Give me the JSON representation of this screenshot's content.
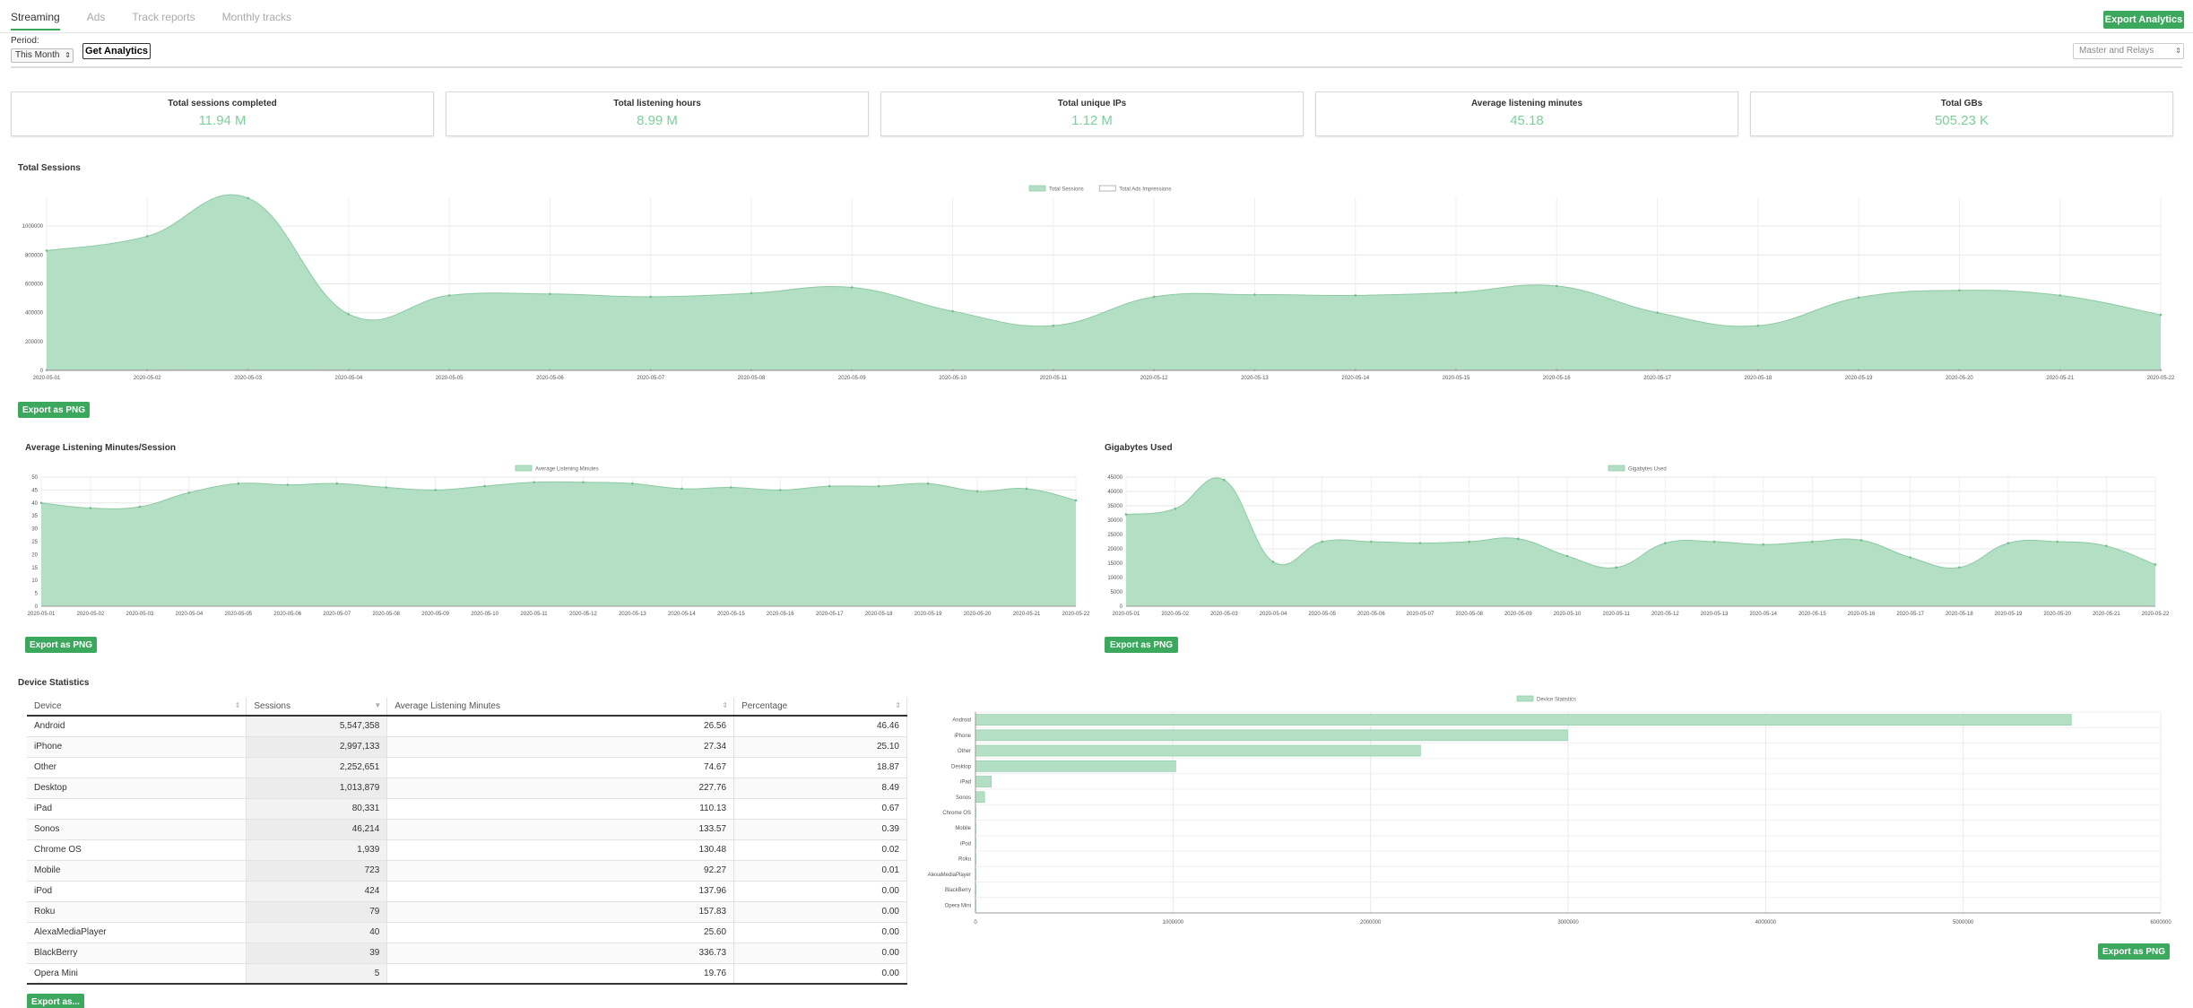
{
  "tabs": [
    {
      "label": "Streaming",
      "active": true
    },
    {
      "label": "Ads",
      "active": false
    },
    {
      "label": "Track reports",
      "active": false
    },
    {
      "label": "Monthly tracks",
      "active": false
    }
  ],
  "toolbar": {
    "export_analytics": "Export Analytics",
    "period_label": "Period:",
    "period_value": "This Month",
    "get_analytics": "Get Analytics",
    "relays_value": "Master and Relays"
  },
  "stats": [
    {
      "title": "Total sessions completed",
      "value": "11.94 M"
    },
    {
      "title": "Total listening hours",
      "value": "8.99 M"
    },
    {
      "title": "Total unique IPs",
      "value": "1.12 M"
    },
    {
      "title": "Average listening minutes",
      "value": "45.18"
    },
    {
      "title": "Total GBs",
      "value": "505.23 K"
    }
  ],
  "sections": {
    "total_sessions": "Total Sessions",
    "avg_listening": "Average Listening Minutes/Session",
    "gigabytes": "Gigabytes Used",
    "device_stats": "Device Statistics"
  },
  "buttons": {
    "export_png": "Export as PNG",
    "export_as": "Export as..."
  },
  "colors": {
    "accent": "#3ca85e",
    "series_fill": "#b3dfc4",
    "series_stroke": "#8ccaa2",
    "stat_value": "#7ccf9b"
  },
  "chart_data": [
    {
      "type": "area",
      "legend": [
        "Total Sessions",
        "Total Ads Impressions"
      ],
      "legend_position": "top-center",
      "grid": true,
      "x": [
        "2020-05-01",
        "2020-05-02",
        "2020-05-03",
        "2020-05-04",
        "2020-05-05",
        "2020-05-06",
        "2020-05-07",
        "2020-05-08",
        "2020-05-09",
        "2020-05-10",
        "2020-05-11",
        "2020-05-12",
        "2020-05-13",
        "2020-05-14",
        "2020-05-15",
        "2020-05-16",
        "2020-05-17",
        "2020-05-18",
        "2020-05-19",
        "2020-05-20",
        "2020-05-21",
        "2020-05-22"
      ],
      "ylim": [
        0,
        1200000
      ],
      "yticks": [
        "0",
        "200000",
        "400000",
        "600000",
        "800000",
        "1000000"
      ],
      "series": [
        {
          "name": "Total Sessions",
          "values": [
            830000,
            930000,
            1195000,
            390000,
            520000,
            530000,
            510000,
            535000,
            575000,
            410000,
            310000,
            510000,
            525000,
            520000,
            540000,
            585000,
            400000,
            310000,
            505000,
            555000,
            520000,
            385000
          ]
        },
        {
          "name": "Total Ads Impressions",
          "values": [
            2000,
            2000,
            3000,
            2000,
            2000,
            2000,
            2000,
            2000,
            2000,
            2000,
            2000,
            2000,
            2000,
            2000,
            2000,
            2000,
            2000,
            2000,
            2000,
            2000,
            2000,
            2000
          ]
        }
      ]
    },
    {
      "type": "area",
      "legend": [
        "Average Listening Minutes"
      ],
      "legend_position": "top-center",
      "grid": true,
      "x": [
        "2020-05-01",
        "2020-05-02",
        "2020-05-03",
        "2020-05-04",
        "2020-05-05",
        "2020-05-06",
        "2020-05-07",
        "2020-05-08",
        "2020-05-09",
        "2020-05-10",
        "2020-05-11",
        "2020-05-12",
        "2020-05-13",
        "2020-05-14",
        "2020-05-15",
        "2020-05-16",
        "2020-05-17",
        "2020-05-18",
        "2020-05-19",
        "2020-05-20",
        "2020-05-21",
        "2020-05-22"
      ],
      "ylim": [
        0,
        50
      ],
      "yticks": [
        "0",
        "5",
        "10",
        "15",
        "20",
        "25",
        "30",
        "35",
        "40",
        "45",
        "50"
      ],
      "series": [
        {
          "name": "Average Listening Minutes",
          "values": [
            40,
            38,
            38.5,
            44,
            47.5,
            47,
            47.5,
            46,
            45,
            46.5,
            48,
            48,
            47.5,
            45.5,
            46,
            45,
            46.5,
            46.5,
            47.5,
            44.5,
            45.5,
            41
          ]
        }
      ]
    },
    {
      "type": "area",
      "legend": [
        "Gigabytes Used"
      ],
      "legend_position": "top-center",
      "grid": true,
      "x": [
        "2020-05-01",
        "2020-05-02",
        "2020-05-03",
        "2020-05-04",
        "2020-05-05",
        "2020-05-06",
        "2020-05-07",
        "2020-05-08",
        "2020-05-09",
        "2020-05-10",
        "2020-05-11",
        "2020-05-12",
        "2020-05-13",
        "2020-05-14",
        "2020-05-15",
        "2020-05-16",
        "2020-05-17",
        "2020-05-18",
        "2020-05-19",
        "2020-05-20",
        "2020-05-21",
        "2020-05-22"
      ],
      "ylim": [
        0,
        45000
      ],
      "yticks": [
        "0",
        "5000",
        "10000",
        "15000",
        "20000",
        "25000",
        "30000",
        "35000",
        "40000",
        "45000"
      ],
      "series": [
        {
          "name": "Gigabytes Used",
          "values": [
            32000,
            34000,
            44000,
            15500,
            22500,
            22500,
            22000,
            22500,
            23500,
            17500,
            13500,
            22000,
            22500,
            21500,
            22500,
            23000,
            17000,
            13500,
            22000,
            22500,
            21000,
            14500
          ]
        }
      ]
    },
    {
      "type": "bar",
      "orientation": "horizontal",
      "legend": [
        "Device Statistics"
      ],
      "legend_position": "top-center",
      "grid": true,
      "xlim": [
        0,
        6000000
      ],
      "xticks": [
        "0",
        "1000000",
        "2000000",
        "3000000",
        "4000000",
        "5000000",
        "6000000"
      ],
      "categories": [
        "Android",
        "iPhone",
        "Other",
        "Desktop",
        "iPad",
        "Sonos",
        "Chrome OS",
        "Mobile",
        "iPod",
        "Roku",
        "AlexaMediaPlayer",
        "BlackBerry",
        "Opera Mini"
      ],
      "values": [
        5547358,
        2997133,
        2252651,
        1013879,
        80331,
        46214,
        1939,
        723,
        424,
        79,
        40,
        39,
        5
      ]
    }
  ],
  "device_table": {
    "headers": [
      "Device",
      "Sessions",
      "Average Listening Minutes",
      "Percentage"
    ],
    "rows": [
      [
        "Android",
        "5,547,358",
        "26.56",
        "46.46"
      ],
      [
        "iPhone",
        "2,997,133",
        "27.34",
        "25.10"
      ],
      [
        "Other",
        "2,252,651",
        "74.67",
        "18.87"
      ],
      [
        "Desktop",
        "1,013,879",
        "227.76",
        "8.49"
      ],
      [
        "iPad",
        "80,331",
        "110.13",
        "0.67"
      ],
      [
        "Sonos",
        "46,214",
        "133.57",
        "0.39"
      ],
      [
        "Chrome OS",
        "1,939",
        "130.48",
        "0.02"
      ],
      [
        "Mobile",
        "723",
        "92.27",
        "0.01"
      ],
      [
        "iPod",
        "424",
        "137.96",
        "0.00"
      ],
      [
        "Roku",
        "79",
        "157.83",
        "0.00"
      ],
      [
        "AlexaMediaPlayer",
        "40",
        "25.60",
        "0.00"
      ],
      [
        "BlackBerry",
        "39",
        "336.73",
        "0.00"
      ],
      [
        "Opera Mini",
        "5",
        "19.76",
        "0.00"
      ]
    ]
  }
}
